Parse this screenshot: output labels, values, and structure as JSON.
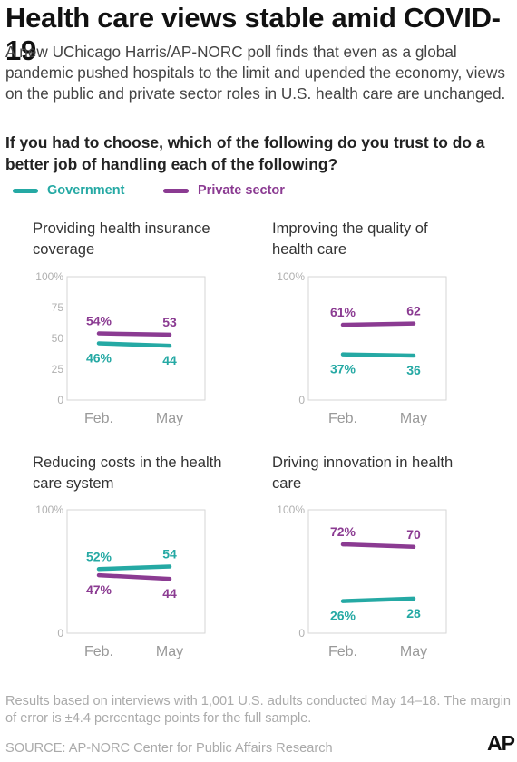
{
  "title": "Health care views stable amid COVID-19",
  "intro": "A new UChicago Harris/AP-NORC poll finds that even as a global pandemic pushed hospitals to the limit and upended the economy, views on the public and private sector roles in U.S. health care are unchanged.",
  "question": "If you had to choose, which of the following do you trust to do a better job of handling each of the following?",
  "legend": {
    "government": "Government",
    "private": "Private sector"
  },
  "colors": {
    "government": "#25a9a4",
    "private": "#8b3b92"
  },
  "chart_data": [
    {
      "type": "line",
      "title": "Providing health insurance coverage",
      "categories": [
        "Feb.",
        "May"
      ],
      "yticks": [
        "100%",
        "75",
        "50",
        "25",
        "0"
      ],
      "ylim": [
        0,
        100
      ],
      "series": [
        {
          "name": "Government",
          "values": [
            46,
            44
          ],
          "labels": [
            "46%",
            "44"
          ]
        },
        {
          "name": "Private sector",
          "values": [
            54,
            53
          ],
          "labels": [
            "54%",
            "53"
          ]
        }
      ]
    },
    {
      "type": "line",
      "title": "Improving the quality of health care",
      "categories": [
        "Feb.",
        "May"
      ],
      "yticks": [
        "100%",
        "0"
      ],
      "ylim": [
        0,
        100
      ],
      "series": [
        {
          "name": "Government",
          "values": [
            37,
            36
          ],
          "labels": [
            "37%",
            "36"
          ]
        },
        {
          "name": "Private sector",
          "values": [
            61,
            62
          ],
          "labels": [
            "61%",
            "62"
          ]
        }
      ]
    },
    {
      "type": "line",
      "title": "Reducing costs in the health care system",
      "categories": [
        "Feb.",
        "May"
      ],
      "yticks": [
        "100%",
        "0"
      ],
      "ylim": [
        0,
        100
      ],
      "series": [
        {
          "name": "Government",
          "values": [
            52,
            54
          ],
          "labels": [
            "52%",
            "54"
          ]
        },
        {
          "name": "Private sector",
          "values": [
            47,
            44
          ],
          "labels": [
            "47%",
            "44"
          ]
        }
      ]
    },
    {
      "type": "line",
      "title": "Driving innovation in health care",
      "categories": [
        "Feb.",
        "May"
      ],
      "yticks": [
        "100%",
        "0"
      ],
      "ylim": [
        0,
        100
      ],
      "series": [
        {
          "name": "Government",
          "values": [
            26,
            28
          ],
          "labels": [
            "26%",
            "28"
          ]
        },
        {
          "name": "Private sector",
          "values": [
            72,
            70
          ],
          "labels": [
            "72%",
            "70"
          ]
        }
      ]
    }
  ],
  "footnote": "Results based on interviews with 1,001 U.S. adults conducted May 14–18. The margin of error is ±4.4 percentage points for the full sample.",
  "source": "SOURCE: AP-NORC Center for Public Affairs Research",
  "logo": "AP"
}
